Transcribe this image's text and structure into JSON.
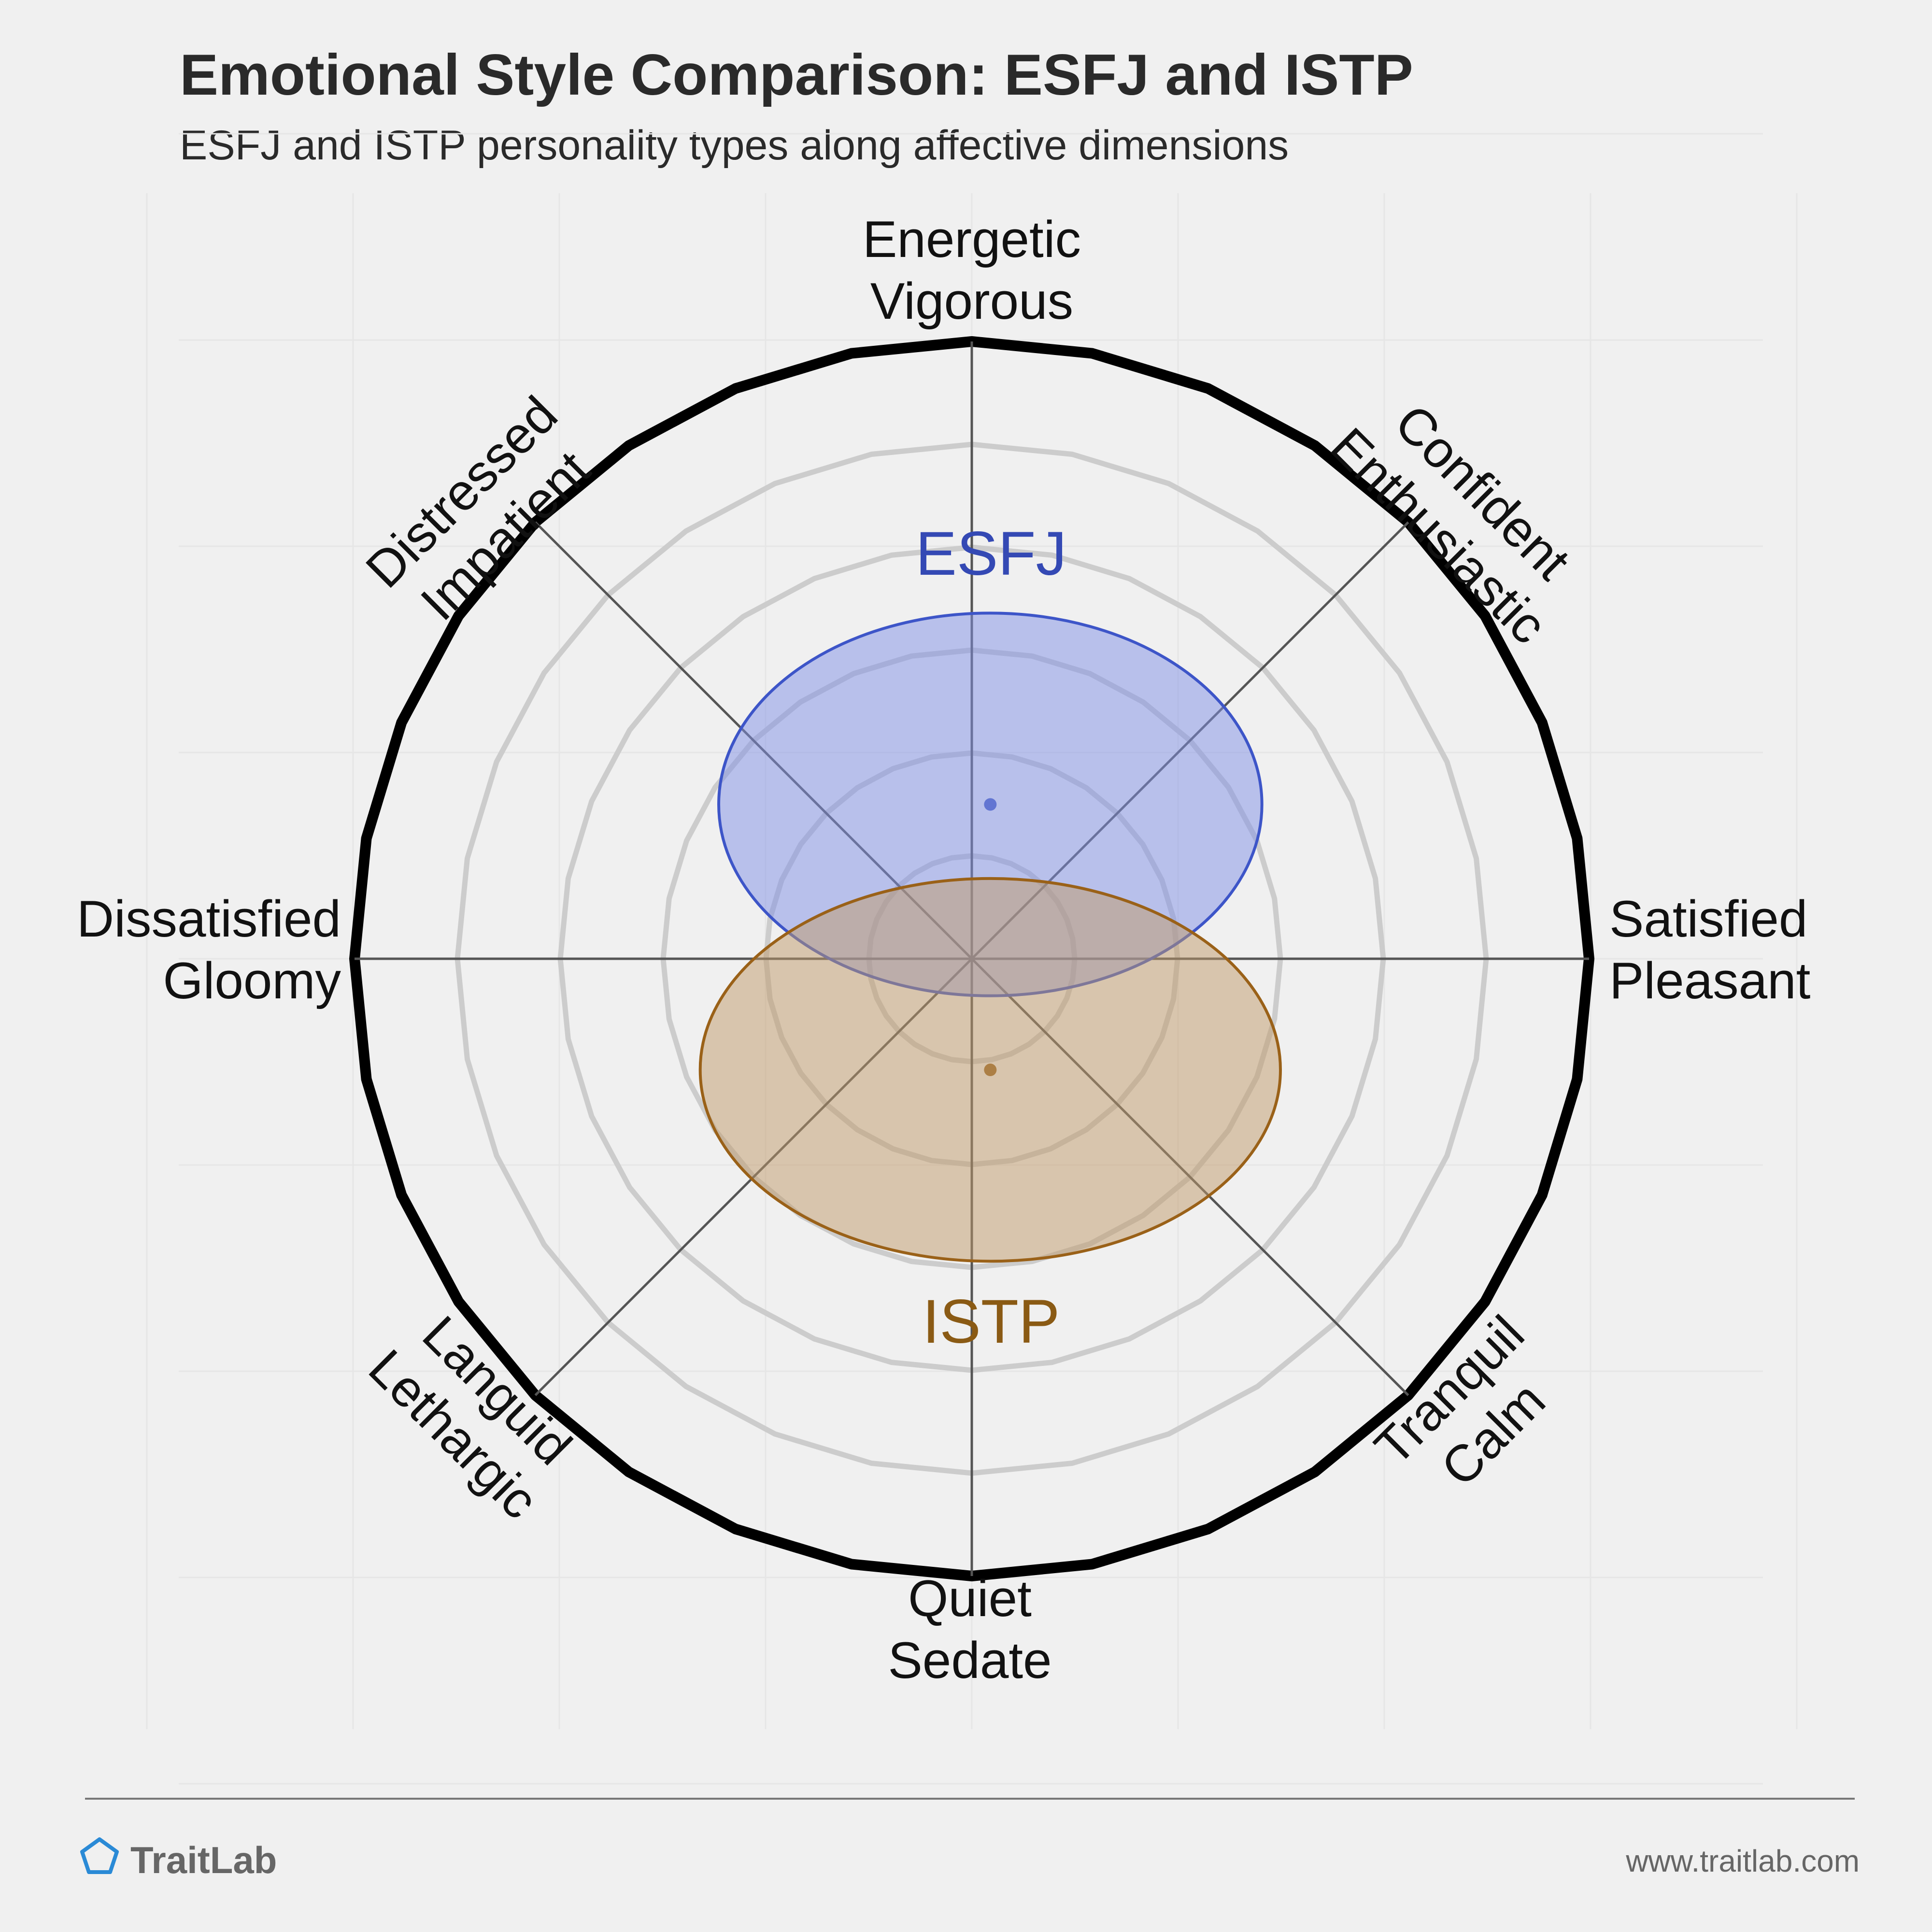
{
  "header": {
    "title": "Emotional Style Comparison: ESFJ and ISTP",
    "subtitle": "ESFJ and ISTP personality types along affective dimensions"
  },
  "footer": {
    "brand": "TraitLab",
    "url": "www.traitlab.com"
  },
  "colors": {
    "background": "#f0f0f0",
    "outer_ring": "#000000",
    "inner_rings": "#cccccc",
    "spokes": "#555555",
    "esfj_fill": "#7f8fe6",
    "esfj_stroke": "#3d55c8",
    "esfj_text": "#3449b4",
    "istp_fill": "#c09a6a",
    "istp_stroke": "#9a6118",
    "istp_text": "#8a5a14"
  },
  "chart_data": {
    "type": "radial-ellipse",
    "rings": 6,
    "axes": [
      {
        "name": "energetic",
        "angle": 90,
        "lines": [
          "Energetic",
          "Vigorous"
        ]
      },
      {
        "name": "confident",
        "angle": 45,
        "lines": [
          "Confident",
          "Enthusiastic"
        ]
      },
      {
        "name": "satisfied",
        "angle": 0,
        "lines": [
          "Satisfied",
          "Pleasant"
        ]
      },
      {
        "name": "tranquil",
        "angle": -45,
        "lines": [
          "Tranquil",
          "Calm"
        ]
      },
      {
        "name": "quiet",
        "angle": -90,
        "lines": [
          "Quiet",
          "Sedate"
        ]
      },
      {
        "name": "languid",
        "angle": -135,
        "lines": [
          "Languid",
          "Lethargic"
        ]
      },
      {
        "name": "dissatisfied",
        "angle": 180,
        "lines": [
          "Dissatisfied",
          "Gloomy"
        ]
      },
      {
        "name": "distressed",
        "angle": 135,
        "lines": [
          "Distressed",
          "Impatient"
        ]
      }
    ],
    "series": [
      {
        "name": "ESFJ",
        "x": 0.03,
        "y": 0.25,
        "rx": 0.44,
        "ry": 0.31,
        "color": "#3d55c8"
      },
      {
        "name": "ISTP",
        "x": 0.03,
        "y": -0.18,
        "rx": 0.47,
        "ry": 0.31,
        "color": "#9a6118"
      }
    ],
    "xlim": [
      -1,
      1
    ],
    "ylim": [
      -1,
      1
    ]
  }
}
